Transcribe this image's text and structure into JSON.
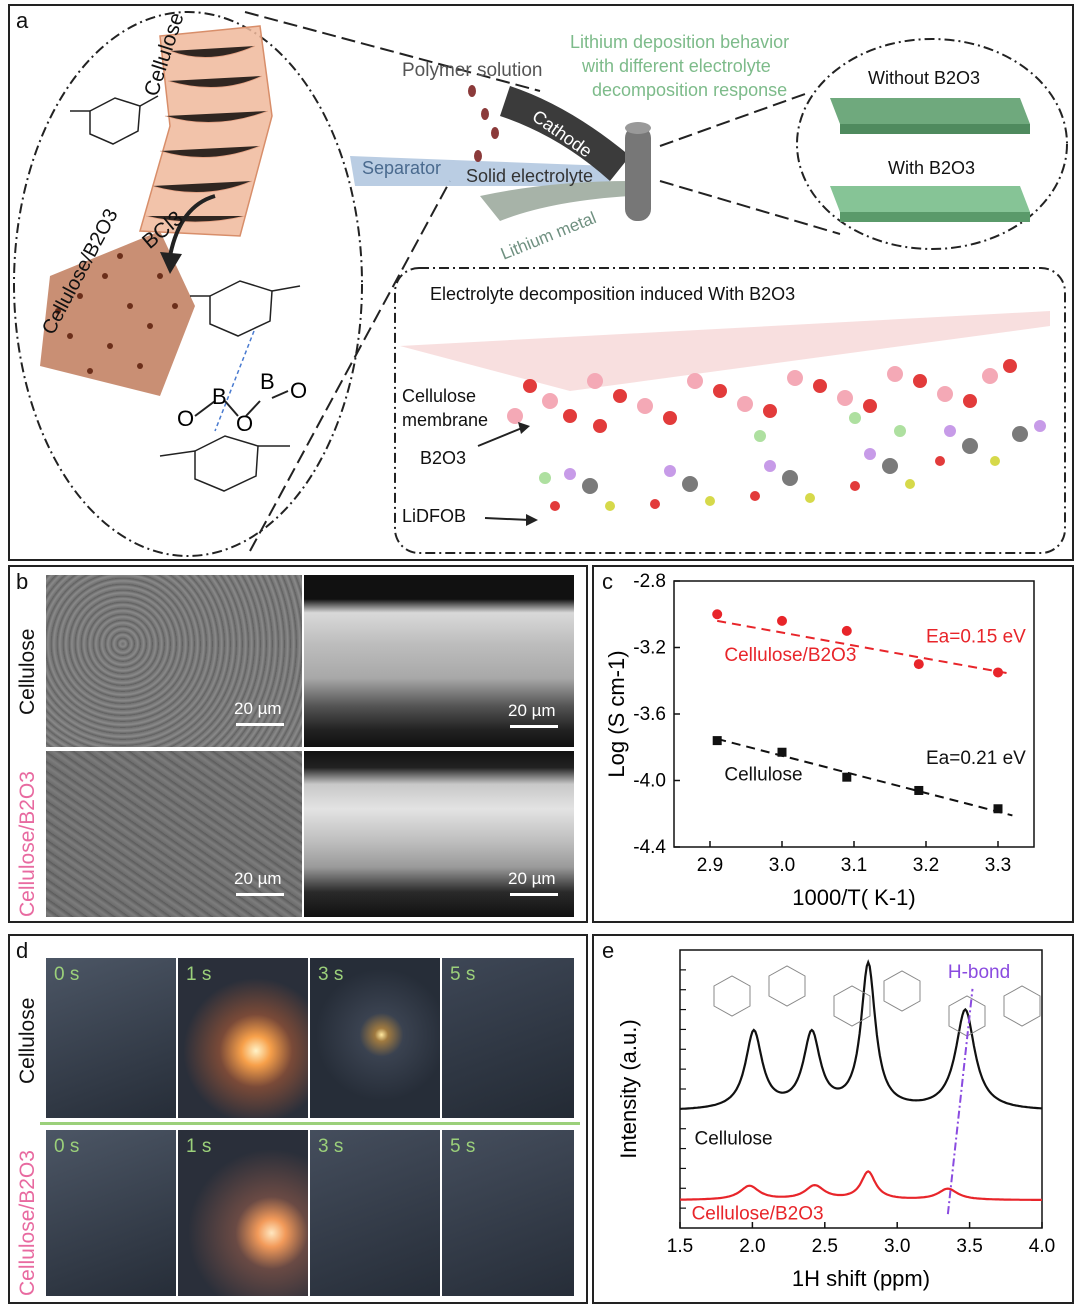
{
  "panel_a": {
    "label": "a",
    "cellulose_label": "Cellulose",
    "cellulose_b2o3_label": "Cellulose/B2O3",
    "reagent": "BCl3",
    "polymer_solution": "Polymer solution",
    "lithium_behavior": [
      "Lithium deposition behavior",
      "with different electrolyte",
      "decomposition response"
    ],
    "cathode": "Cathode",
    "separator": "Separator",
    "solid_electrolyte": "Solid electrolyte",
    "lithium_metal": "Lithium metal",
    "without_b2o3": "Without B2O3",
    "with_b2o3": "With B2O3",
    "decomposition_title": "Electrolyte decomposition induced With B2O3",
    "cellulose_membrane": [
      "Cellulose",
      "membrane"
    ],
    "b2o3": "B2O3",
    "lidfob": "LiDFOB",
    "colors": {
      "cathode": "#3b3b3b",
      "separator": "#9fb8d6",
      "membrane_green": "#7fbf8e",
      "cellulose_fiber": "#e8a98a"
    }
  },
  "panel_b": {
    "label": "b",
    "row_labels": [
      "Cellulose",
      "Cellulose/B2O3"
    ],
    "scale_bar": "20 µm"
  },
  "panel_c": {
    "label": "c",
    "annotations": {
      "ea_b2o3": "Ea=0.15 eV",
      "ea_cellulose": "Ea=0.21 eV",
      "series_b2o3": "Cellulose/B2O3",
      "series_cellulose": "Cellulose"
    },
    "xlabel": "1000/T( K-1)",
    "ylabel": "Log (S cm-1)"
  },
  "panel_d": {
    "label": "d",
    "row_labels": [
      "Cellulose",
      "Cellulose/B2O3"
    ],
    "times": [
      "0 s",
      "1 s",
      "3 s",
      "5 s"
    ]
  },
  "panel_e": {
    "label": "e",
    "hbond": "H-bond",
    "series_cellulose": "Cellulose",
    "series_b2o3": "Cellulose/B2O3",
    "xlabel": "1H shift (ppm)",
    "ylabel": "Intensity (a.u.)"
  },
  "chart_data": [
    {
      "type": "scatter",
      "panel": "c",
      "xlabel": "1000/T( K-1)",
      "ylabel": "Log (S cm-1)",
      "xlim": [
        2.85,
        3.35
      ],
      "ylim": [
        -4.4,
        -2.8
      ],
      "xticks": [
        2.9,
        3.0,
        3.1,
        3.2,
        3.3
      ],
      "yticks": [
        -2.8,
        -3.2,
        -3.6,
        -4.0,
        -4.4
      ],
      "series": [
        {
          "name": "Cellulose/B2O3",
          "color": "#e8252a",
          "marker": "circle",
          "x": [
            2.91,
            3.0,
            3.09,
            3.19,
            3.3
          ],
          "y": [
            -3.0,
            -3.04,
            -3.1,
            -3.3,
            -3.35
          ],
          "fit": [
            [
              2.91,
              -3.04
            ],
            [
              3.32,
              -3.36
            ]
          ],
          "annotation": "Ea=0.15 eV"
        },
        {
          "name": "Cellulose",
          "color": "#111111",
          "marker": "square",
          "x": [
            2.91,
            3.0,
            3.09,
            3.19,
            3.3
          ],
          "y": [
            -3.76,
            -3.83,
            -3.98,
            -4.06,
            -4.17
          ],
          "fit": [
            [
              2.91,
              -3.75
            ],
            [
              3.32,
              -4.21
            ]
          ],
          "annotation": "Ea=0.21 eV"
        }
      ]
    },
    {
      "type": "line",
      "panel": "e",
      "xlabel": "1H shift (ppm)",
      "ylabel": "Intensity (a.u.)",
      "xlim": [
        1.5,
        4.0
      ],
      "xticks": [
        1.5,
        2.0,
        2.5,
        3.0,
        3.5,
        4.0
      ],
      "series": [
        {
          "name": "Cellulose",
          "color": "#111111",
          "baseline": 0.42,
          "peaks": [
            [
              2.01,
              0.28,
              0.07
            ],
            [
              2.41,
              0.27,
              0.07
            ],
            [
              2.8,
              0.52,
              0.06
            ],
            [
              3.47,
              0.36,
              0.08
            ]
          ]
        },
        {
          "name": "Cellulose/B2O3",
          "color": "#e8252a",
          "baseline": 0.1,
          "peaks": [
            [
              1.98,
              0.05,
              0.08
            ],
            [
              2.43,
              0.05,
              0.08
            ],
            [
              2.8,
              0.1,
              0.06
            ],
            [
              3.35,
              0.04,
              0.08
            ]
          ]
        }
      ],
      "annotation": "H-bond"
    }
  ]
}
